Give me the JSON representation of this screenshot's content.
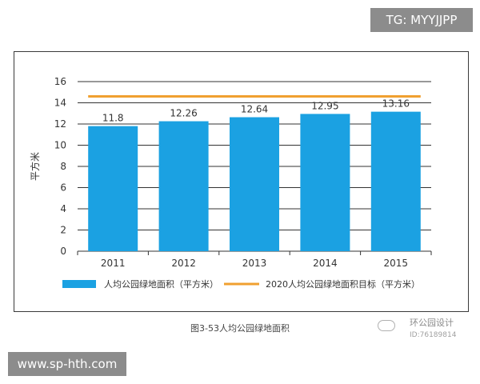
{
  "overlays": {
    "tg_label": "TG: MYYJJPP",
    "url_label": "www.sp-hth.com",
    "watermark_brand": "环公园设计",
    "watermark_id": "ID:76189814"
  },
  "caption": "图3-53人均公园绿地面积",
  "colors": {
    "bar": "#1ba1e2",
    "target": "#f0a030",
    "grid": "#333333",
    "text": "#333333"
  },
  "chart_data": {
    "type": "bar",
    "categories": [
      "2011",
      "2012",
      "2013",
      "2014",
      "2015"
    ],
    "series": [
      {
        "name": "人均公园绿地面积（平方米）",
        "type": "bar",
        "values": [
          11.8,
          12.26,
          12.64,
          12.95,
          13.16
        ]
      },
      {
        "name": "2020人均公园绿地面积目标（平方米）",
        "type": "line",
        "values": [
          14.6,
          14.6,
          14.6,
          14.6,
          14.6
        ]
      }
    ],
    "data_labels": [
      "11.8",
      "12.26",
      "12.64",
      "12.95",
      "13.16"
    ],
    "ylabel": "平方米",
    "ylim": [
      0,
      16
    ],
    "yticks": [
      0,
      2,
      4,
      6,
      8,
      10,
      12,
      14,
      16
    ],
    "grid": true,
    "legend_position": "bottom"
  }
}
